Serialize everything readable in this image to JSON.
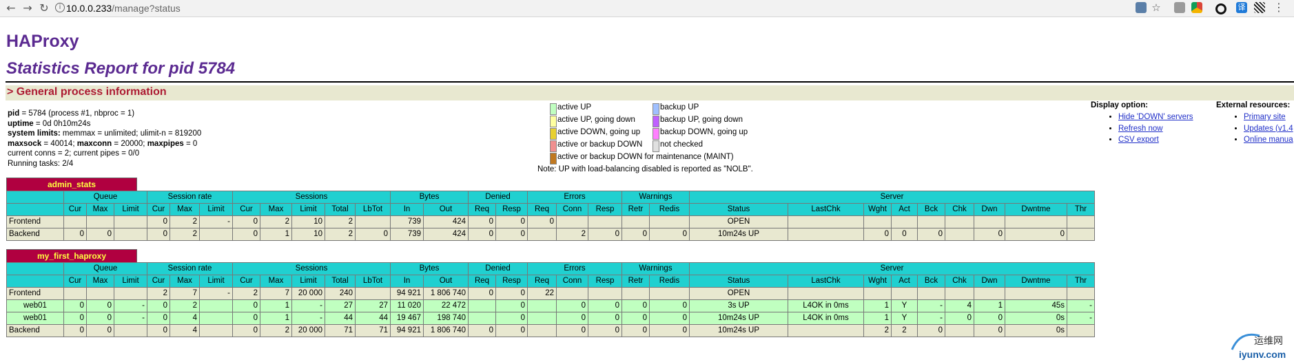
{
  "browser": {
    "url_host": "10.0.0.233",
    "url_path": "/manage?status",
    "ext_translate_label": "译"
  },
  "header": {
    "title": "HAProxy",
    "subtitle": "Statistics Report for pid 5784",
    "section": "> General process information"
  },
  "process": {
    "pid_label": "pid",
    "pid_value": " = 5784 (process #1, nbproc = 1)",
    "uptime_label": "uptime",
    "uptime_value": " = 0d 0h10m24s",
    "syslimits_label": "system limits:",
    "syslimits_value": " memmax = unlimited; ulimit-n = 819200",
    "maxsock_label": "maxsock",
    "maxsock_value": " = 40014; ",
    "maxconn_label": "maxconn",
    "maxconn_value": " = 20000; ",
    "maxpipes_label": "maxpipes",
    "maxpipes_value": " = 0",
    "conns": "current conns = 2; current pipes = 0/0",
    "tasks": "Running tasks: 2/4"
  },
  "legend": {
    "left": [
      {
        "label": "active UP",
        "color": "#c0ffc0"
      },
      {
        "label": "active UP, going down",
        "color": "#ffffa0"
      },
      {
        "label": "active DOWN, going up",
        "color": "#e8d030"
      },
      {
        "label": "active or backup DOWN",
        "color": "#f09090"
      },
      {
        "label": "active or backup DOWN for maintenance (MAINT)",
        "color": "#c07820"
      }
    ],
    "right": [
      {
        "label": "backup UP",
        "color": "#a0c0ff"
      },
      {
        "label": "backup UP, going down",
        "color": "#c060ff"
      },
      {
        "label": "backup DOWN, going up",
        "color": "#ff80ff"
      },
      {
        "label": "not checked",
        "color": "#e0e0e0"
      }
    ],
    "note": "Note: UP with load-balancing disabled is reported as \"NOLB\"."
  },
  "display_options": {
    "title": "Display option:",
    "items": [
      "Hide 'DOWN' servers",
      "Refresh now",
      "CSV export"
    ]
  },
  "external_resources": {
    "title": "External resources:",
    "items": [
      "Primary site",
      "Updates (v1.4",
      "Online manua"
    ]
  },
  "headers": {
    "groups": [
      "Queue",
      "Session rate",
      "Sessions",
      "Bytes",
      "Denied",
      "Errors",
      "Warnings",
      "Server"
    ],
    "cols": [
      "Cur",
      "Max",
      "Limit",
      "Cur",
      "Max",
      "Limit",
      "Cur",
      "Max",
      "Limit",
      "Total",
      "LbTot",
      "In",
      "Out",
      "Req",
      "Resp",
      "Req",
      "Conn",
      "Resp",
      "Retr",
      "Redis",
      "Status",
      "LastChk",
      "Wght",
      "Act",
      "Bck",
      "Chk",
      "Dwn",
      "Dwntme",
      "Thr"
    ]
  },
  "proxies": [
    {
      "name": "admin_stats",
      "rows": [
        {
          "type": "fe",
          "cells": [
            "Frontend",
            "",
            "",
            "",
            "0",
            "2",
            "-",
            "0",
            "2",
            "10",
            "2",
            "",
            "739",
            "424",
            "0",
            "0",
            "0",
            "",
            "",
            "",
            "",
            "OPEN",
            "",
            "",
            "",
            "",
            "",
            "",
            "",
            ""
          ]
        },
        {
          "type": "be",
          "cells": [
            "Backend",
            "0",
            "0",
            "",
            "0",
            "2",
            "",
            "0",
            "1",
            "10",
            "2",
            "0",
            "739",
            "424",
            "0",
            "0",
            "",
            "2",
            "0",
            "0",
            "0",
            "10m24s UP",
            "",
            "0",
            "0",
            "0",
            "",
            "0",
            "0",
            ""
          ]
        }
      ]
    },
    {
      "name": "my_first_haproxy",
      "rows": [
        {
          "type": "fe",
          "cells": [
            "Frontend",
            "",
            "",
            "",
            "2",
            "7",
            "-",
            "2",
            "7",
            "20 000",
            "240",
            "",
            "94 921",
            "1 806 740",
            "0",
            "0",
            "22",
            "",
            "",
            "",
            "",
            "OPEN",
            "",
            "",
            "",
            "",
            "",
            "",
            "",
            ""
          ]
        },
        {
          "type": "up",
          "cells": [
            "web01",
            "0",
            "0",
            "-",
            "0",
            "2",
            "",
            "0",
            "1",
            "-",
            "27",
            "27",
            "11 020",
            "22 472",
            "",
            "0",
            "",
            "0",
            "0",
            "0",
            "0",
            "3s UP",
            "L4OK in 0ms",
            "1",
            "Y",
            "-",
            "4",
            "1",
            "45s",
            "-"
          ]
        },
        {
          "type": "up",
          "cells": [
            "web01",
            "0",
            "0",
            "-",
            "0",
            "4",
            "",
            "0",
            "1",
            "-",
            "44",
            "44",
            "19 467",
            "198 740",
            "",
            "0",
            "",
            "0",
            "0",
            "0",
            "0",
            "10m24s UP",
            "L4OK in 0ms",
            "1",
            "Y",
            "-",
            "0",
            "0",
            "0s",
            "-"
          ]
        },
        {
          "type": "be",
          "cells": [
            "Backend",
            "0",
            "0",
            "",
            "0",
            "4",
            "",
            "0",
            "2",
            "20 000",
            "71",
            "71",
            "94 921",
            "1 806 740",
            "0",
            "0",
            "",
            "0",
            "0",
            "0",
            "0",
            "10m24s UP",
            "",
            "2",
            "2",
            "0",
            "",
            "0",
            "0s",
            ""
          ]
        }
      ]
    }
  ],
  "watermark": {
    "line1": "运维网",
    "line2": "iyunv.com"
  }
}
